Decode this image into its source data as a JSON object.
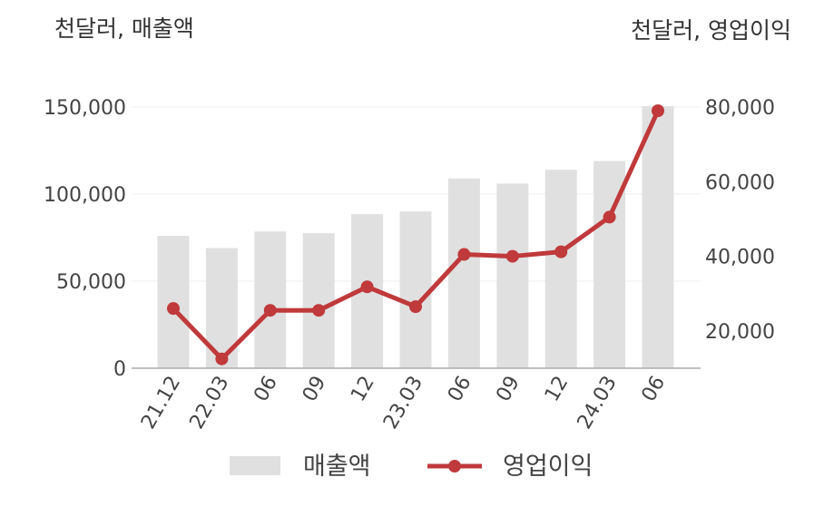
{
  "chart_data": {
    "type": "bar+line",
    "left_unit_label": "천달러, 매출액",
    "right_unit_label": "천달러, 영업이익",
    "categories": [
      "21.12",
      "22.03",
      "06",
      "09",
      "12",
      "23.03",
      "06",
      "09",
      "12",
      "24.03",
      "06"
    ],
    "series": [
      {
        "name": "매출액",
        "type": "bar",
        "axis": "left",
        "color": "#e0e0e0",
        "values": [
          76000,
          69000,
          78500,
          77500,
          88500,
          90000,
          109000,
          106000,
          114000,
          119000,
          150500
        ]
      },
      {
        "name": "영업이익",
        "type": "line",
        "axis": "right",
        "color": "#c0393b",
        "values": [
          26000,
          12500,
          25500,
          25500,
          31800,
          26500,
          40500,
          40000,
          41200,
          50500,
          79000
        ]
      }
    ],
    "left_axis": {
      "min": 0,
      "max": 150000,
      "ticks": [
        0,
        50000,
        100000,
        150000
      ],
      "tick_labels": [
        "0",
        "50,000",
        "100,000",
        "150,000"
      ]
    },
    "right_axis": {
      "min": 10000,
      "max": 80000,
      "ticks": [
        20000,
        40000,
        60000,
        80000
      ],
      "tick_labels": [
        "20,000",
        "40,000",
        "60,000",
        "80,000"
      ]
    },
    "grid": true,
    "legend": {
      "position": "bottom",
      "items": [
        "매출액",
        "영업이익"
      ]
    }
  }
}
